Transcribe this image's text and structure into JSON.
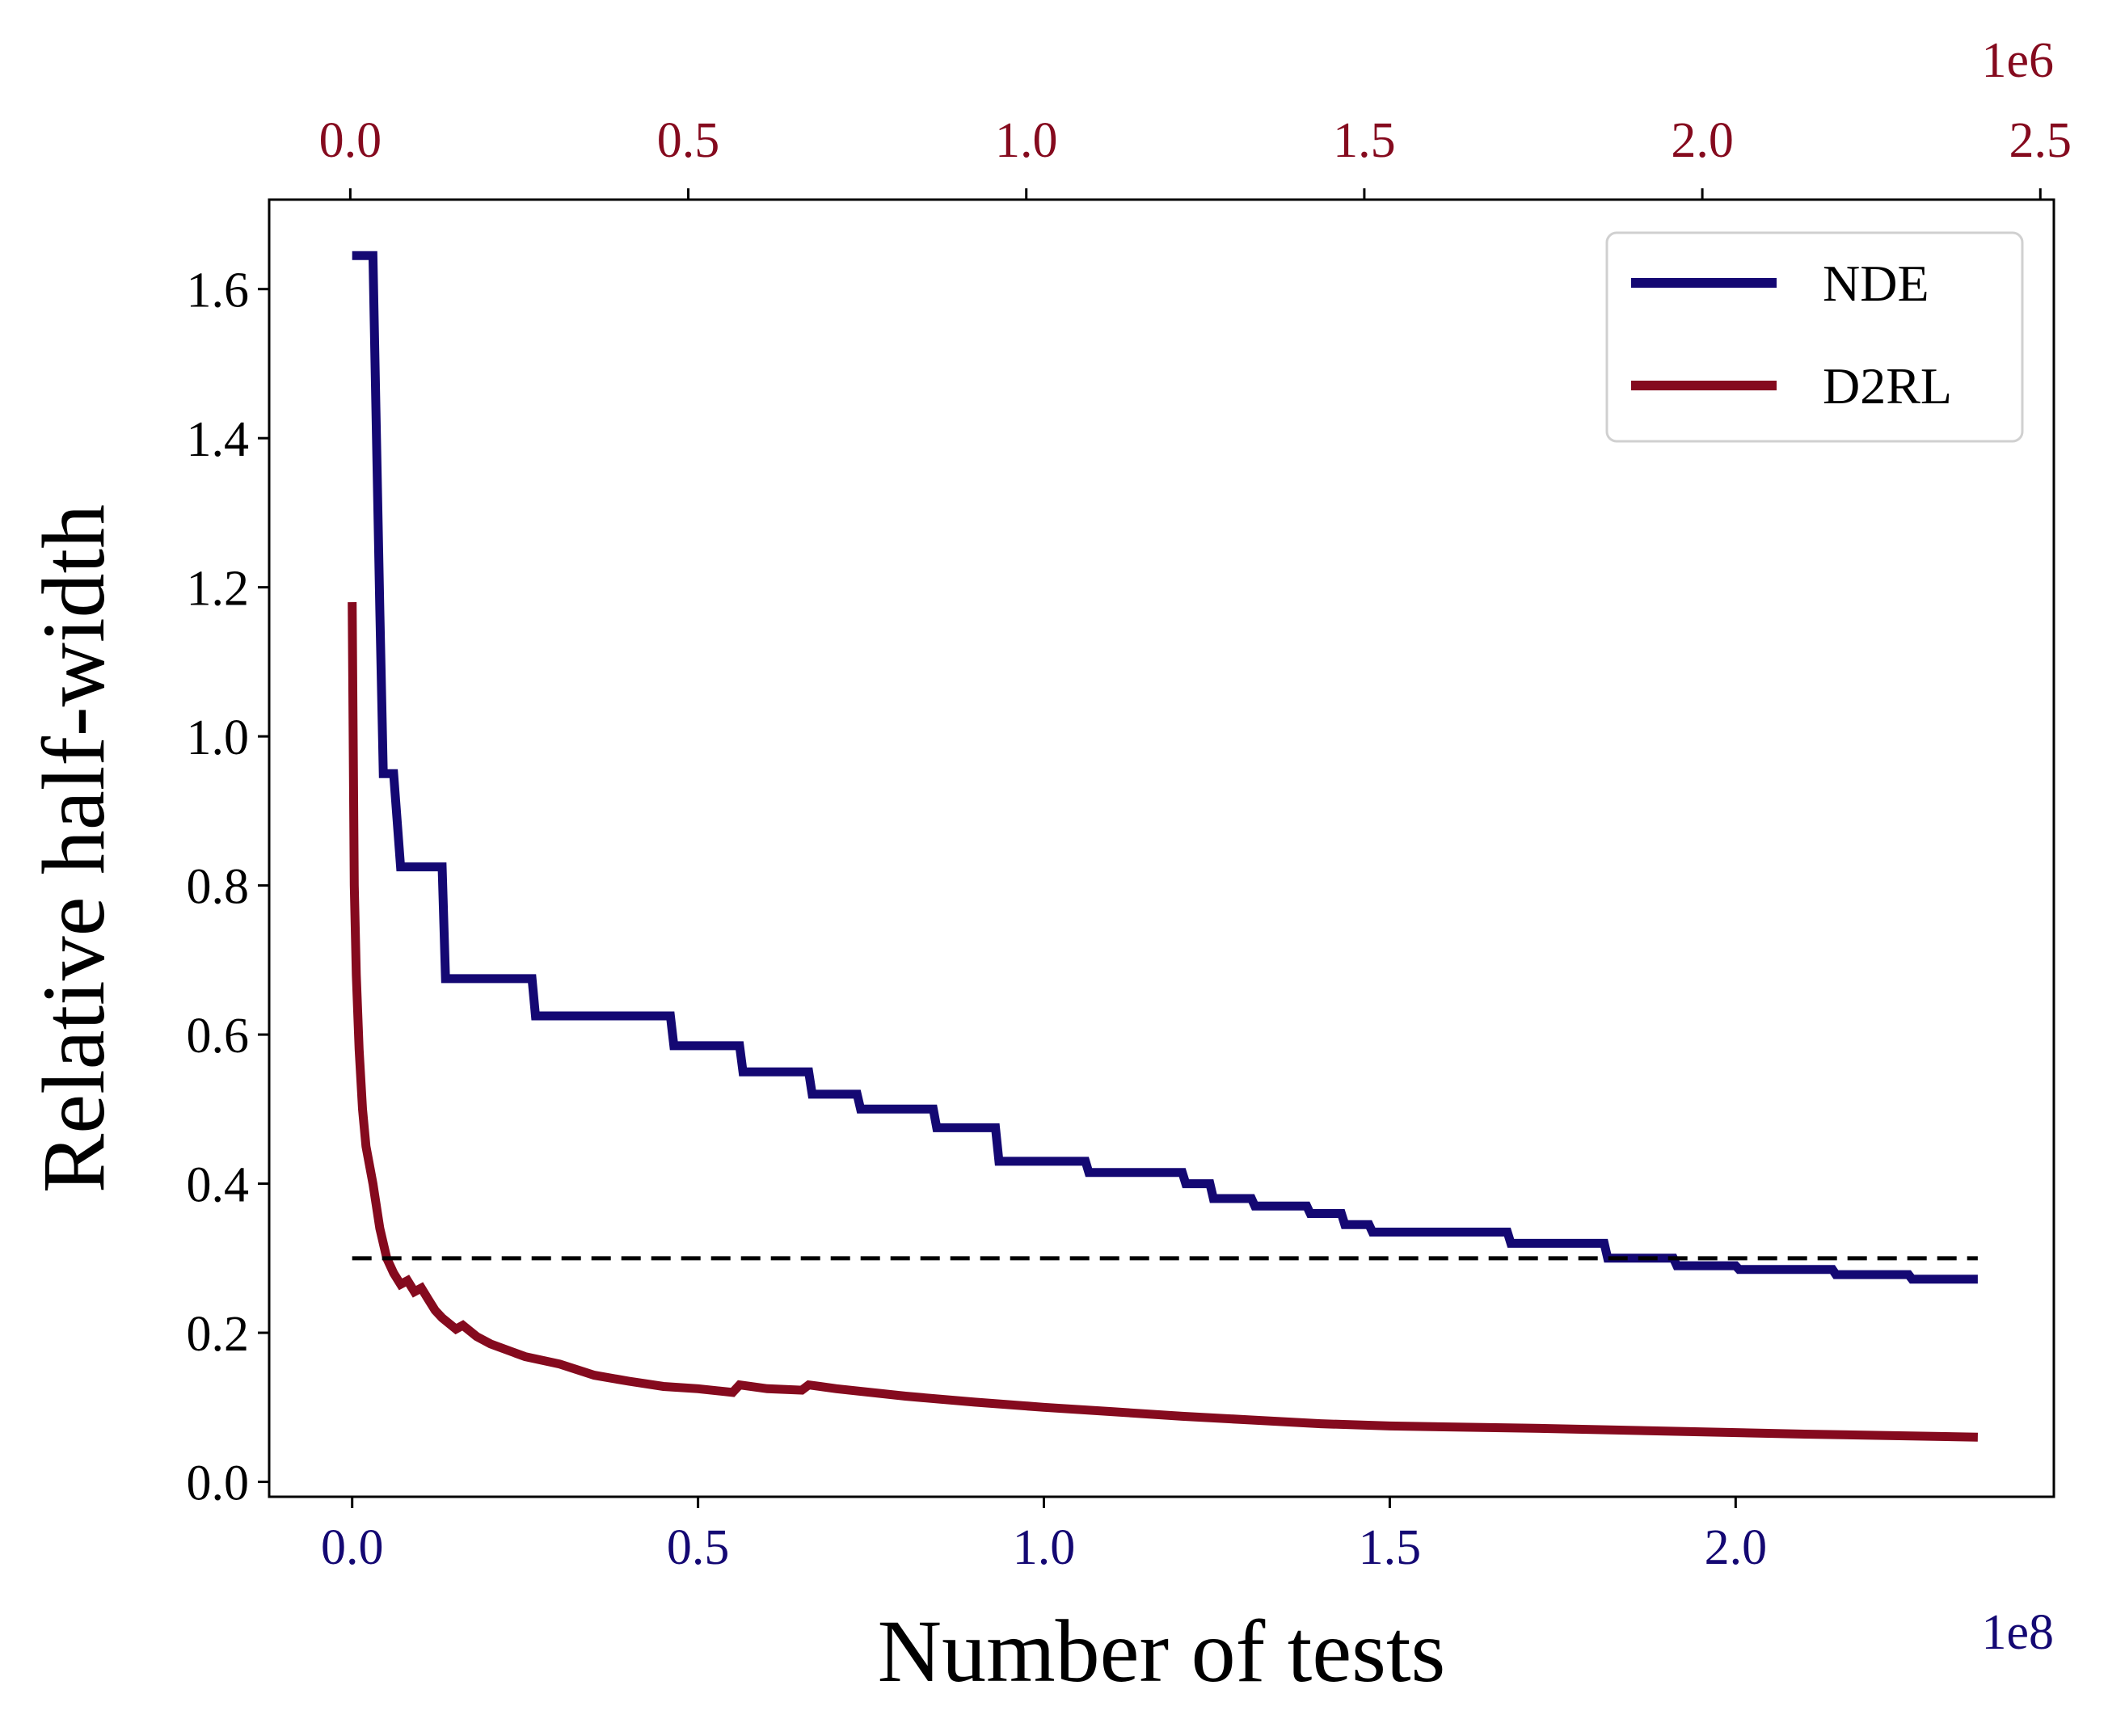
{
  "chart_data": {
    "type": "line",
    "xlabel": "Number of tests",
    "ylabel": "Relative half-width",
    "xlim": [
      -0.12,
      2.46
    ],
    "ylim": [
      -0.02,
      1.72
    ],
    "x_ticks": [
      "0.0",
      "0.5",
      "1.0",
      "1.5",
      "2.0"
    ],
    "x_tick_values": [
      0,
      0.5,
      1.0,
      1.5,
      2.0
    ],
    "x_offset_label": "1e8",
    "top_x_ticks": [
      "0.0",
      "0.5",
      "1.0",
      "1.5",
      "2.0",
      "2.5"
    ],
    "top_x_tick_values": [
      0,
      0.5,
      1.0,
      1.5,
      2.0,
      2.5
    ],
    "top_x_offset_label": "1e6",
    "top_xlim": [
      -0.12,
      2.52
    ],
    "y_ticks": [
      "0.0",
      "0.2",
      "0.4",
      "0.6",
      "0.8",
      "1.0",
      "1.2",
      "1.4",
      "1.6"
    ],
    "y_tick_values": [
      0,
      0.2,
      0.4,
      0.6,
      0.8,
      1.0,
      1.2,
      1.4,
      1.6
    ],
    "grid": false,
    "legend_position": "top-right",
    "threshold": {
      "y": 0.3,
      "x_start": 0,
      "x_end": 2.35,
      "style": "dashed",
      "color": "#000000"
    },
    "series": [
      {
        "name": "NDE",
        "color": "#140873",
        "step": true,
        "x": [
          0.0,
          0.03,
          0.04,
          0.045,
          0.06,
          0.07,
          0.13,
          0.135,
          0.26,
          0.265,
          0.46,
          0.465,
          0.56,
          0.565,
          0.66,
          0.665,
          0.73,
          0.735,
          0.84,
          0.845,
          0.93,
          0.935,
          1.06,
          1.065,
          1.2,
          1.205,
          1.24,
          1.245,
          1.3,
          1.305,
          1.38,
          1.385,
          1.43,
          1.435,
          1.47,
          1.475,
          1.67,
          1.675,
          1.81,
          1.815,
          1.91,
          1.915,
          2.0,
          2.005,
          2.14,
          2.145,
          2.25,
          2.255,
          2.35
        ],
        "y": [
          1.645,
          1.645,
          1.17,
          0.95,
          0.95,
          0.825,
          0.825,
          0.675,
          0.675,
          0.625,
          0.625,
          0.585,
          0.585,
          0.55,
          0.55,
          0.52,
          0.52,
          0.5,
          0.5,
          0.475,
          0.475,
          0.43,
          0.43,
          0.415,
          0.415,
          0.4,
          0.4,
          0.38,
          0.38,
          0.37,
          0.37,
          0.36,
          0.36,
          0.345,
          0.345,
          0.335,
          0.335,
          0.32,
          0.32,
          0.3,
          0.3,
          0.29,
          0.29,
          0.285,
          0.285,
          0.278,
          0.278,
          0.272,
          0.272
        ]
      },
      {
        "name": "D2RL",
        "color": "#850A1E",
        "x": [
          0.0,
          0.003,
          0.006,
          0.01,
          0.015,
          0.02,
          0.03,
          0.04,
          0.05,
          0.06,
          0.07,
          0.08,
          0.09,
          0.1,
          0.11,
          0.12,
          0.13,
          0.15,
          0.16,
          0.18,
          0.2,
          0.25,
          0.3,
          0.35,
          0.4,
          0.45,
          0.5,
          0.55,
          0.56,
          0.6,
          0.65,
          0.66,
          0.7,
          0.8,
          0.9,
          1.0,
          1.1,
          1.2,
          1.3,
          1.4,
          1.5,
          1.7,
          1.9,
          2.1,
          2.35
        ],
        "y": [
          1.18,
          0.8,
          0.68,
          0.58,
          0.5,
          0.45,
          0.4,
          0.34,
          0.3,
          0.28,
          0.265,
          0.27,
          0.255,
          0.26,
          0.245,
          0.23,
          0.22,
          0.205,
          0.21,
          0.195,
          0.185,
          0.168,
          0.158,
          0.143,
          0.135,
          0.128,
          0.125,
          0.12,
          0.13,
          0.125,
          0.123,
          0.13,
          0.125,
          0.115,
          0.107,
          0.1,
          0.094,
          0.088,
          0.083,
          0.078,
          0.075,
          0.072,
          0.068,
          0.064,
          0.06
        ]
      }
    ]
  }
}
